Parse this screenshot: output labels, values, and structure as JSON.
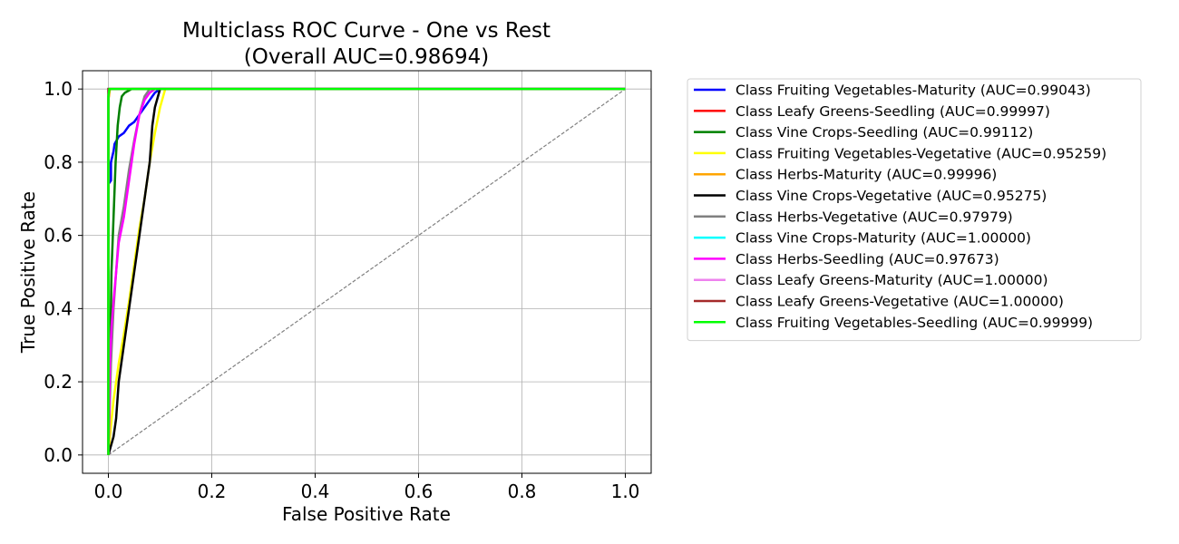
{
  "chart_data": {
    "type": "line",
    "title_line1": "Multiclass ROC Curve - One vs Rest",
    "title_line2": "(Overall AUC=0.98694)",
    "xlabel": "False Positive Rate",
    "ylabel": "True Positive Rate",
    "xlim": [
      -0.05,
      1.05
    ],
    "ylim": [
      -0.05,
      1.05
    ],
    "xticks": [
      0.0,
      0.2,
      0.4,
      0.6,
      0.8,
      1.0
    ],
    "yticks": [
      0.0,
      0.2,
      0.4,
      0.6,
      0.8,
      1.0
    ],
    "xtick_labels": [
      "0.0",
      "0.2",
      "0.4",
      "0.6",
      "0.8",
      "1.0"
    ],
    "ytick_labels": [
      "0.0",
      "0.2",
      "0.4",
      "0.6",
      "0.8",
      "1.0"
    ],
    "grid": true,
    "legend_position": "outside-right",
    "diagonal": {
      "x": [
        0,
        1
      ],
      "y": [
        0,
        1
      ],
      "color": "#808080",
      "style": "dashed"
    },
    "series": [
      {
        "name": "Class Fruiting Vegetables-Maturity (AUC=0.99043)",
        "color": "#0000ff",
        "x": [
          0,
          0,
          0.005,
          0.005,
          0.01,
          0.012,
          0.02,
          0.03,
          0.04,
          0.05,
          0.06,
          0.07,
          0.08,
          0.085,
          0.09,
          0.1,
          1.0
        ],
        "y": [
          0,
          0.74,
          0.75,
          0.8,
          0.83,
          0.85,
          0.87,
          0.88,
          0.9,
          0.91,
          0.93,
          0.95,
          0.97,
          0.98,
          0.99,
          1.0,
          1.0
        ]
      },
      {
        "name": "Class Leafy Greens-Seedling (AUC=0.99997)",
        "color": "#ff0000",
        "x": [
          0,
          0,
          0.002,
          1.0
        ],
        "y": [
          0,
          0.97,
          1.0,
          1.0
        ]
      },
      {
        "name": "Class Vine Crops-Seedling (AUC=0.99112)",
        "color": "#008000",
        "x": [
          0,
          0.003,
          0.006,
          0.01,
          0.014,
          0.018,
          0.022,
          0.026,
          0.032,
          0.045,
          1.0
        ],
        "y": [
          0,
          0.2,
          0.5,
          0.65,
          0.8,
          0.9,
          0.95,
          0.98,
          0.99,
          1.0,
          1.0
        ]
      },
      {
        "name": "Class Fruiting Vegetables-Vegetative (AUC=0.95259)",
        "color": "#ffff00",
        "x": [
          0,
          0.005,
          0.01,
          0.02,
          0.03,
          0.04,
          0.05,
          0.06,
          0.07,
          0.08,
          0.09,
          0.1,
          0.11,
          1.0
        ],
        "y": [
          0,
          0.08,
          0.15,
          0.25,
          0.33,
          0.42,
          0.52,
          0.62,
          0.7,
          0.8,
          0.88,
          0.95,
          1.0,
          1.0
        ]
      },
      {
        "name": "Class Herbs-Maturity (AUC=0.99996)",
        "color": "#ffa500",
        "x": [
          0,
          0,
          0.003,
          1.0
        ],
        "y": [
          0,
          0.97,
          1.0,
          1.0
        ]
      },
      {
        "name": "Class Vine Crops-Vegetative (AUC=0.95275)",
        "color": "#000000",
        "x": [
          0,
          0.01,
          0.015,
          0.02,
          0.03,
          0.04,
          0.05,
          0.06,
          0.07,
          0.08,
          0.085,
          0.09,
          0.1,
          1.0
        ],
        "y": [
          0,
          0.05,
          0.1,
          0.2,
          0.3,
          0.4,
          0.5,
          0.6,
          0.7,
          0.8,
          0.9,
          0.95,
          1.0,
          1.0
        ]
      },
      {
        "name": "Class Herbs-Vegetative (AUC=0.97979)",
        "color": "#808080",
        "x": [
          0,
          0.005,
          0.01,
          0.015,
          0.02,
          0.03,
          0.04,
          0.05,
          0.06,
          0.07,
          0.08,
          1.0
        ],
        "y": [
          0,
          0.25,
          0.4,
          0.5,
          0.6,
          0.68,
          0.78,
          0.86,
          0.93,
          0.98,
          1.0,
          1.0
        ]
      },
      {
        "name": "Class Vine Crops-Maturity (AUC=1.00000)",
        "color": "#00ffff",
        "x": [
          0,
          0,
          1.0
        ],
        "y": [
          0,
          1.0,
          1.0
        ]
      },
      {
        "name": "Class Herbs-Seedling (AUC=0.97673)",
        "color": "#ff00ff",
        "x": [
          0,
          0.003,
          0.006,
          0.01,
          0.015,
          0.02,
          0.03,
          0.04,
          0.05,
          0.06,
          0.07,
          0.08,
          0.09,
          1.0
        ],
        "y": [
          0,
          0.25,
          0.35,
          0.42,
          0.5,
          0.58,
          0.65,
          0.75,
          0.85,
          0.93,
          0.97,
          0.99,
          1.0,
          1.0
        ]
      },
      {
        "name": "Class Leafy Greens-Maturity (AUC=1.00000)",
        "color": "#ee82ee",
        "x": [
          0,
          0,
          1.0
        ],
        "y": [
          0,
          1.0,
          1.0
        ]
      },
      {
        "name": "Class Leafy Greens-Vegetative (AUC=1.00000)",
        "color": "#a52a2a",
        "x": [
          0,
          0,
          1.0
        ],
        "y": [
          0,
          1.0,
          1.0
        ]
      },
      {
        "name": "Class Fruiting Vegetables-Seedling (AUC=0.99999)",
        "color": "#00ff00",
        "x": [
          0,
          0,
          0.002,
          1.0
        ],
        "y": [
          0,
          0.98,
          1.0,
          1.0
        ]
      }
    ]
  }
}
